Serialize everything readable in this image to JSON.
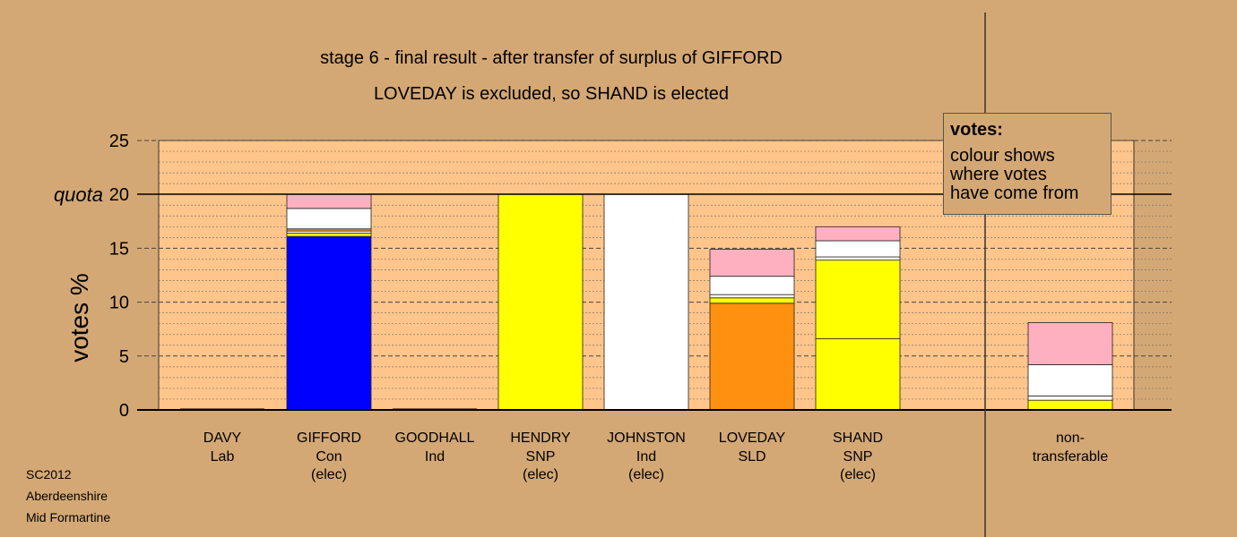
{
  "title": "stage 6 - final result - after transfer of surplus of GIFFORD",
  "subtitle": "LOVEDAY is excluded, so SHAND is elected",
  "legend": {
    "title": "votes:",
    "lines": [
      "colour shows",
      "where votes",
      "have come from"
    ]
  },
  "footer": [
    "SC2012",
    "Aberdeenshire",
    "Mid Formartine"
  ],
  "colors": {
    "background": "#d4a874",
    "plot_area": "#ffc58a",
    "con": "#0000ff",
    "snp": "#ffff00",
    "ind": "#ffffff",
    "sld": "#ff9010",
    "lab": "#ffb0c0"
  },
  "chart_data": {
    "type": "bar",
    "stacked": true,
    "ylabel": "votes %",
    "ylim": [
      0,
      25
    ],
    "yticks": [
      "0",
      "5",
      "10",
      "15",
      "20",
      "25"
    ],
    "quota": {
      "label": "quota",
      "value": 20
    },
    "grid": true,
    "categories": [
      {
        "lines": [
          "DAVY",
          "Lab"
        ]
      },
      {
        "lines": [
          "GIFFORD",
          "Con",
          "(elec)"
        ]
      },
      {
        "lines": [
          "GOODHALL",
          "Ind"
        ]
      },
      {
        "lines": [
          "HENDRY",
          "SNP",
          "(elec)"
        ]
      },
      {
        "lines": [
          "JOHNSTON",
          "Ind",
          "(elec)"
        ]
      },
      {
        "lines": [
          "LOVEDAY",
          "SLD"
        ]
      },
      {
        "lines": [
          "SHAND",
          "SNP",
          "(elec)"
        ]
      },
      {
        "lines": [
          "non-",
          "transferable"
        ]
      }
    ],
    "stacks": [
      [],
      [
        {
          "value": 16.1,
          "color": "#0000ff"
        },
        {
          "value": 0.3,
          "color": "#ffff00"
        },
        {
          "value": 0.2,
          "color": "#ffffff"
        },
        {
          "value": 0.2,
          "color": "#ff9010"
        },
        {
          "value": 1.9,
          "color": "#ffffff"
        },
        {
          "value": 1.3,
          "color": "#ffb0c0"
        }
      ],
      [],
      [
        {
          "value": 20.0,
          "color": "#ffff00"
        }
      ],
      [
        {
          "value": 20.0,
          "color": "#ffffff"
        }
      ],
      [
        {
          "value": 9.9,
          "color": "#ff9010"
        },
        {
          "value": 0.5,
          "color": "#ffff00"
        },
        {
          "value": 0.3,
          "color": "#ffffff"
        },
        {
          "value": 1.7,
          "color": "#ffffff"
        },
        {
          "value": 2.5,
          "color": "#ffb0c0"
        }
      ],
      [
        {
          "value": 6.6,
          "color": "#ffff00"
        },
        {
          "value": 7.3,
          "color": "#ffff00"
        },
        {
          "value": 0.3,
          "color": "#ffffff"
        },
        {
          "value": 1.5,
          "color": "#ffffff"
        },
        {
          "value": 1.3,
          "color": "#ffb0c0"
        }
      ],
      [
        {
          "value": 0.9,
          "color": "#ffff00"
        },
        {
          "value": 0.4,
          "color": "#ffffff"
        },
        {
          "value": 2.9,
          "color": "#ffffff"
        },
        {
          "value": 3.9,
          "color": "#ffb0c0"
        }
      ]
    ]
  }
}
